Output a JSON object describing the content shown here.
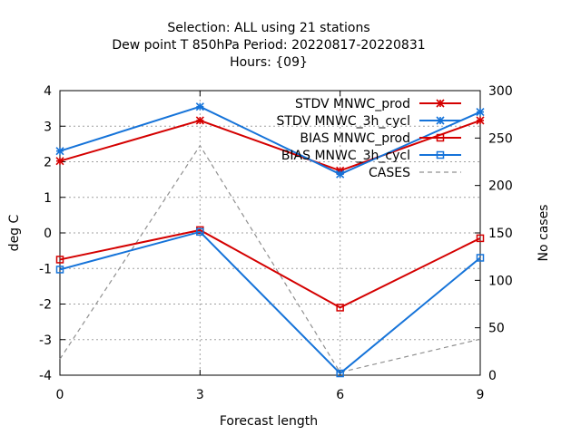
{
  "chart_data": {
    "type": "line",
    "title_lines": [
      "Selection: ALL using    21 stations",
      "Dew point T 850hPa   Period: 20220817-20220831",
      "Hours: {09}"
    ],
    "xlabel": "Forecast length",
    "ylabel": "deg C",
    "y2label": "No cases",
    "x": [
      0,
      3,
      6,
      9
    ],
    "xlim": [
      0,
      9
    ],
    "ylim": [
      -4,
      4
    ],
    "y2lim": [
      0,
      300
    ],
    "xticks": [
      0,
      3,
      6,
      9
    ],
    "yticks": [
      -4,
      -3,
      -2,
      -1,
      0,
      1,
      2,
      3,
      4
    ],
    "y2ticks": [
      0,
      50,
      100,
      150,
      200,
      250,
      300
    ],
    "grid": true,
    "legend_position": "top-right",
    "series": [
      {
        "name": "STDV MNWC_prod",
        "axis": "y1",
        "marker": "star",
        "color": "#d40000",
        "dash": "solid",
        "values": [
          2.02,
          3.16,
          1.75,
          3.16
        ]
      },
      {
        "name": "STDV MNWC_3h_cycl",
        "axis": "y1",
        "marker": "star",
        "color": "#1573d9",
        "dash": "solid",
        "values": [
          2.3,
          3.55,
          1.65,
          3.4
        ]
      },
      {
        "name": "BIAS MNWC_prod",
        "axis": "y1",
        "marker": "square",
        "color": "#d40000",
        "dash": "solid",
        "values": [
          -0.75,
          0.08,
          -2.1,
          -0.15
        ]
      },
      {
        "name": "BIAS MNWC_3h_cycl",
        "axis": "y1",
        "marker": "square",
        "color": "#1573d9",
        "dash": "solid",
        "values": [
          -1.03,
          0.03,
          -3.95,
          -0.7
        ]
      },
      {
        "name": "CASES",
        "axis": "y2",
        "marker": "none",
        "color": "#909090",
        "dash": "dashed",
        "values": [
          17,
          242,
          3,
          38
        ]
      }
    ]
  }
}
